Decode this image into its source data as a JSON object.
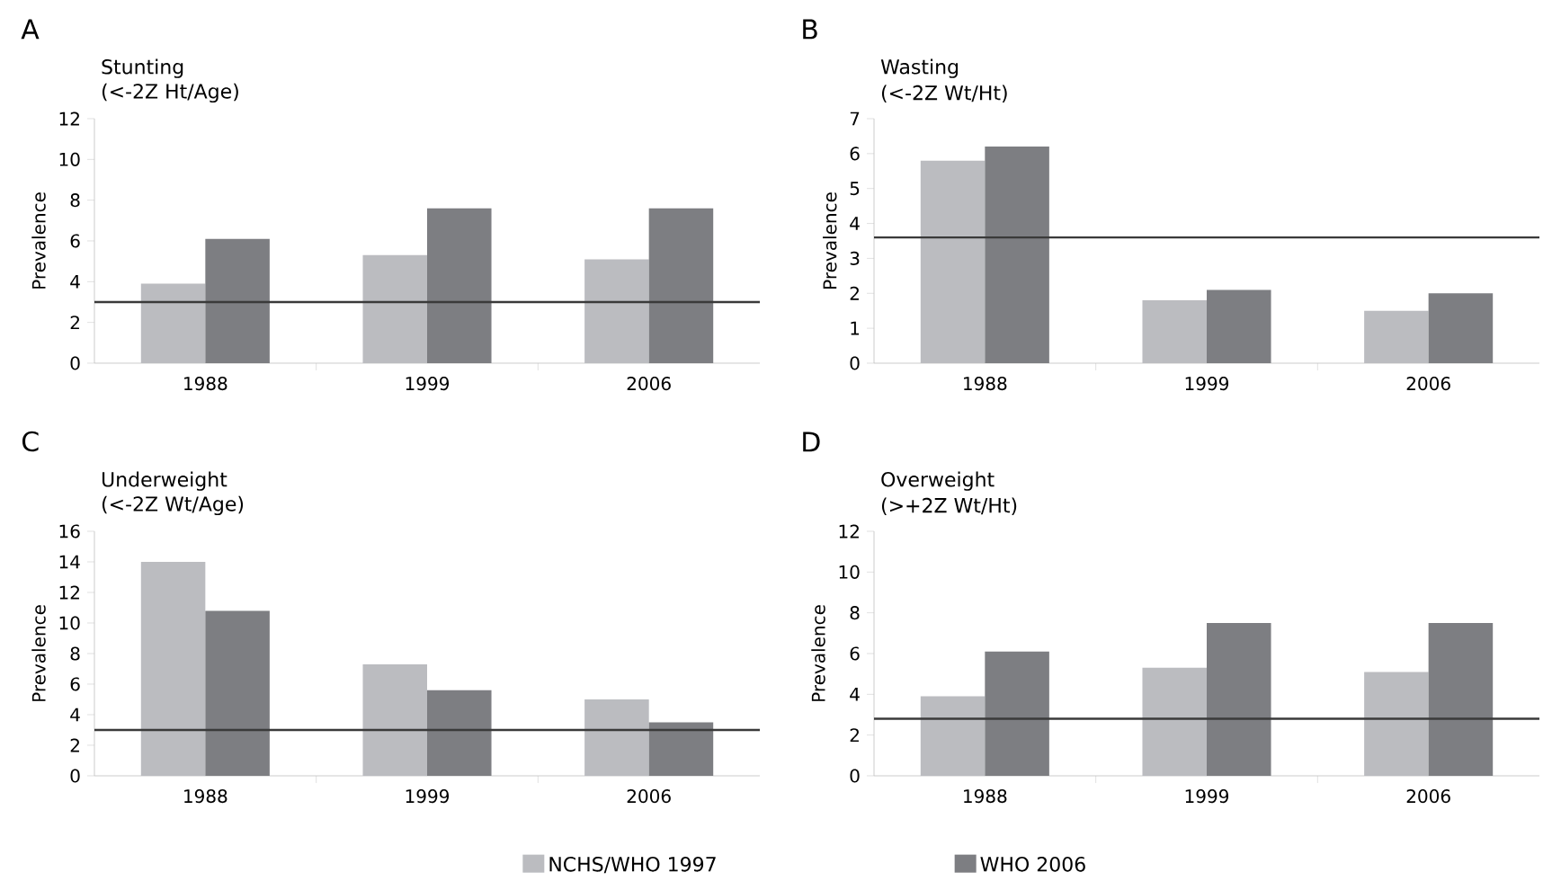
{
  "chart_data": [
    {
      "type": "bar",
      "title": "A",
      "subtitle": "Stunting",
      "annotations": [
        "(<-2Z Ht/Age)"
      ],
      "ylabel": "Prevalence",
      "categories": [
        "1988",
        "1999",
        "2006"
      ],
      "series": [
        {
          "color": "#bbbcc0",
          "values": [
            3.9,
            5.3,
            5.1
          ]
        },
        {
          "color": "#7d7e82",
          "values": [
            6.1,
            7.6,
            7.6
          ]
        }
      ],
      "ylim": [
        0,
        12
      ],
      "yticks": [
        0,
        2,
        4,
        6,
        8,
        10,
        12
      ],
      "ref_lines": [
        {
          "axis": "y",
          "value": 3,
          "color": "#3a3a3a"
        }
      ]
    },
    {
      "type": "bar",
      "title": "B",
      "subtitle": "Wasting",
      "annotations": [
        "(<-2Z Wt/Ht)"
      ],
      "ylabel": "Prevalence",
      "categories": [
        "1988",
        "1999",
        "2006"
      ],
      "series": [
        {
          "color": "#bbbcc0",
          "values": [
            5.8,
            1.8,
            1.5
          ]
        },
        {
          "color": "#7d7e82",
          "values": [
            6.2,
            2.1,
            2.0
          ]
        }
      ],
      "ylim": [
        0,
        7
      ],
      "yticks": [
        0,
        1,
        2,
        3,
        4,
        5,
        6,
        7
      ],
      "ref_lines": [
        {
          "axis": "y",
          "value": 3.6,
          "color": "#3a3a3a"
        }
      ]
    },
    {
      "type": "bar",
      "title": "C",
      "subtitle": "Underweight",
      "annotations": [
        "(<-2Z Wt/Age)"
      ],
      "ylabel": "Prevalence",
      "categories": [
        "1988",
        "1999",
        "2006"
      ],
      "series": [
        {
          "name": "NCHS/WHO 1997",
          "color": "#bbbcc0",
          "values": [
            14.0,
            7.3,
            5.0
          ]
        },
        {
          "name": "WHO 2006",
          "color": "#7d7e82",
          "values": [
            10.8,
            5.6,
            3.5
          ]
        }
      ],
      "ylim": [
        0,
        16
      ],
      "yticks": [
        0,
        2,
        4,
        6,
        8,
        10,
        12,
        14,
        16
      ],
      "ref_lines": [
        {
          "axis": "y",
          "value": 3,
          "color": "#3a3a3a"
        }
      ],
      "legend": "bottom"
    },
    {
      "type": "bar",
      "title": "D",
      "subtitle": "Overweight",
      "annotations": [
        "(>+2Z Wt/Ht)"
      ],
      "ylabel": "Prevalence",
      "categories": [
        "1988",
        "1999",
        "2006"
      ],
      "series": [
        {
          "color": "#bbbcc0",
          "values": [
            3.9,
            5.3,
            5.1
          ]
        },
        {
          "color": "#7d7e82",
          "values": [
            6.1,
            7.5,
            7.5
          ]
        }
      ],
      "ylim": [
        0,
        12
      ],
      "yticks": [
        0,
        2,
        4,
        6,
        8,
        10,
        12
      ],
      "ref_lines": [
        {
          "axis": "y",
          "value": 2.8,
          "color": "#3a3a3a"
        }
      ]
    }
  ]
}
